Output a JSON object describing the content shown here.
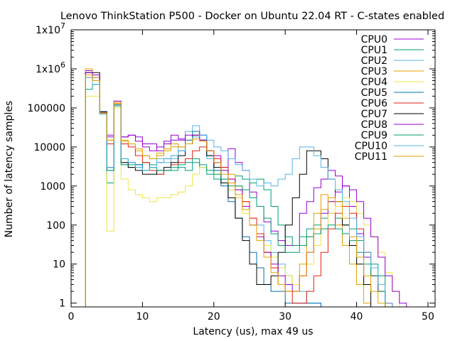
{
  "chart_data": {
    "type": "line",
    "title": "Lenovo ThinkStation P500 - Docker on Ubuntu 22.04 RT - C-states enabled",
    "xlabel": "Latency (us), max 49 us",
    "ylabel": "Number of latency samples",
    "xlim": [
      0,
      51
    ],
    "ylim": [
      0.8,
      10000000
    ],
    "yscale": "log",
    "grid": false,
    "legend_position": "top-right",
    "x_ticks": [
      0,
      10,
      20,
      30,
      40,
      50
    ],
    "y_ticks": [
      {
        "value": 1,
        "base": "1",
        "exp": ""
      },
      {
        "value": 10,
        "base": "10",
        "exp": ""
      },
      {
        "value": 100,
        "base": "100",
        "exp": ""
      },
      {
        "value": 1000,
        "base": "1000",
        "exp": ""
      },
      {
        "value": 10000,
        "base": "10000",
        "exp": ""
      },
      {
        "value": 100000,
        "base": "100000",
        "exp": ""
      },
      {
        "value": 1000000,
        "base": "1x10",
        "exp": "6"
      },
      {
        "value": 10000000,
        "base": "1x10",
        "exp": "7"
      }
    ],
    "series": [
      {
        "name": "CPU0",
        "color": "#9400d3",
        "values": [
          0,
          0,
          900000,
          600000,
          80000,
          18000,
          150000,
          18000,
          20000,
          18000,
          12000,
          12000,
          8000,
          14000,
          20000,
          16000,
          25000,
          25000,
          20000,
          8000,
          6000,
          3000,
          9000,
          4000,
          2500,
          700,
          300,
          120,
          70,
          40,
          30,
          30,
          200,
          400,
          900,
          1500,
          2500,
          1800,
          1000,
          300,
          60,
          15,
          5,
          2,
          0,
          0,
          0,
          0,
          0,
          0
        ]
      },
      {
        "name": "CPU1",
        "color": "#009e73",
        "values": [
          0,
          0,
          300000,
          400000,
          70000,
          1200,
          120000,
          3500,
          3000,
          3500,
          4000,
          3500,
          2000,
          2500,
          2500,
          3000,
          2500,
          4000,
          3000,
          2000,
          1500,
          1500,
          1000,
          1800,
          1500,
          1200,
          1500,
          800,
          300,
          100,
          50,
          30,
          50,
          80,
          100,
          150,
          200,
          150,
          100,
          80,
          40,
          20,
          10,
          5,
          0,
          0,
          0,
          0,
          0,
          0
        ]
      },
      {
        "name": "CPU2",
        "color": "#56b4e9",
        "values": [
          0,
          0,
          700000,
          500000,
          80000,
          3000,
          120000,
          4000,
          4000,
          3500,
          2500,
          3000,
          5000,
          4000,
          5000,
          10000,
          25000,
          35000,
          20000,
          5000,
          2500,
          1200,
          800,
          500,
          300,
          150,
          100,
          40,
          20,
          10,
          5,
          3,
          2,
          1,
          1,
          0,
          0,
          0,
          0,
          0,
          0,
          0,
          0,
          0,
          0,
          0,
          0,
          0,
          0,
          0
        ]
      },
      {
        "name": "CPU3",
        "color": "#e69f00",
        "values": [
          0,
          0,
          1000000,
          600000,
          75000,
          15000,
          140000,
          15000,
          12000,
          8000,
          6000,
          5000,
          7000,
          9000,
          12000,
          10000,
          15000,
          20000,
          15000,
          8000,
          4000,
          2500,
          2000,
          1000,
          400,
          150,
          60,
          20,
          8,
          3,
          2,
          2,
          10,
          50,
          200,
          600,
          400,
          100,
          30,
          10,
          3,
          1,
          0,
          0,
          0,
          0,
          0,
          0,
          0,
          0
        ]
      },
      {
        "name": "CPU4",
        "color": "#f0e442",
        "values": [
          0,
          0,
          200000,
          200000,
          70000,
          70,
          100000,
          1500,
          800,
          600,
          500,
          400,
          500,
          500,
          600,
          700,
          1000,
          2000,
          3000,
          2500,
          2000,
          1500,
          800,
          500,
          200,
          100,
          60,
          30,
          15,
          8,
          5,
          3,
          5,
          10,
          30,
          80,
          200,
          300,
          500,
          400,
          200,
          100,
          50,
          20,
          6,
          2,
          0,
          0,
          0,
          0
        ]
      },
      {
        "name": "CPU5",
        "color": "#0072b2",
        "values": [
          0,
          0,
          800000,
          700000,
          80000,
          2500,
          130000,
          5000,
          4000,
          3500,
          2500,
          3000,
          4000,
          5000,
          6000,
          8000,
          15000,
          25000,
          20000,
          6000,
          2500,
          1000,
          400,
          150,
          50,
          20,
          8,
          3,
          2,
          2,
          1,
          1,
          1,
          1,
          1,
          0,
          0,
          0,
          0,
          0,
          0,
          0,
          0,
          0,
          0,
          0,
          0,
          0,
          0,
          0
        ]
      },
      {
        "name": "CPU6",
        "color": "#e51e10",
        "values": [
          0,
          0,
          600000,
          500000,
          75000,
          12000,
          130000,
          12000,
          10000,
          6000,
          4000,
          2500,
          2000,
          2500,
          3500,
          4000,
          5000,
          8000,
          10000,
          8000,
          5000,
          3000,
          1500,
          800,
          400,
          150,
          60,
          20,
          8,
          3,
          2,
          1,
          1,
          2,
          5,
          20,
          80,
          200,
          300,
          200,
          80,
          20,
          5,
          2,
          1,
          0,
          0,
          0,
          0,
          0
        ]
      },
      {
        "name": "CPU7",
        "color": "#000000",
        "values": [
          0,
          0,
          800000,
          800000,
          80000,
          3000,
          120000,
          4000,
          3000,
          2500,
          2000,
          2000,
          2500,
          3000,
          4000,
          6000,
          12000,
          20000,
          15000,
          6000,
          3000,
          1200,
          500,
          150,
          40,
          10,
          3,
          3,
          5,
          20,
          100,
          500,
          2000,
          8000,
          8000,
          5000,
          1500,
          400,
          100,
          30,
          10,
          3,
          0,
          0,
          0,
          0,
          0,
          0,
          0,
          0
        ]
      },
      {
        "name": "CPU8",
        "color": "#9400d3",
        "values": [
          0,
          0,
          800000,
          700000,
          75000,
          20000,
          120000,
          18000,
          20000,
          14000,
          10000,
          8000,
          10000,
          12000,
          15000,
          15000,
          20000,
          20000,
          15000,
          8000,
          4000,
          2500,
          1500,
          800,
          300,
          100,
          50,
          20,
          10,
          5,
          3,
          2,
          5,
          20,
          60,
          200,
          400,
          700,
          1000,
          800,
          400,
          150,
          50,
          15,
          5,
          2,
          1,
          0,
          0,
          0
        ]
      },
      {
        "name": "CPU9",
        "color": "#009e73",
        "values": [
          0,
          0,
          700000,
          500000,
          70000,
          2500,
          120000,
          3500,
          3500,
          3000,
          2500,
          3000,
          2500,
          2500,
          3000,
          3500,
          4000,
          5000,
          3500,
          2500,
          2000,
          1500,
          1200,
          1000,
          800,
          500,
          300,
          150,
          60,
          30,
          20,
          20,
          30,
          50,
          60,
          80,
          100,
          80,
          60,
          40,
          20,
          10,
          5,
          2,
          0,
          0,
          0,
          0,
          0,
          0
        ]
      },
      {
        "name": "CPU10",
        "color": "#56b4e9",
        "values": [
          0,
          0,
          600000,
          400000,
          70000,
          3000,
          110000,
          5000,
          4000,
          3000,
          2500,
          3000,
          4000,
          5000,
          6000,
          8000,
          12000,
          18000,
          20000,
          15000,
          10000,
          8000,
          5000,
          3500,
          2500,
          1500,
          1000,
          1200,
          1000,
          1500,
          2000,
          5000,
          10000,
          10000,
          6000,
          3000,
          1500,
          800,
          400,
          150,
          50,
          20,
          8,
          3,
          1,
          0,
          0,
          0,
          0,
          0
        ]
      },
      {
        "name": "CPU11",
        "color": "#e69f00",
        "values": [
          0,
          0,
          700000,
          500000,
          75000,
          15000,
          130000,
          14000,
          12000,
          9000,
          6000,
          5000,
          6000,
          8000,
          10000,
          10000,
          12000,
          16000,
          14000,
          8000,
          4000,
          2000,
          1200,
          600,
          250,
          100,
          40,
          15,
          6,
          3,
          2,
          2,
          5,
          20,
          80,
          250,
          500,
          400,
          150,
          50,
          15,
          5,
          2,
          1,
          0,
          0,
          0,
          0,
          0,
          0
        ]
      }
    ]
  }
}
